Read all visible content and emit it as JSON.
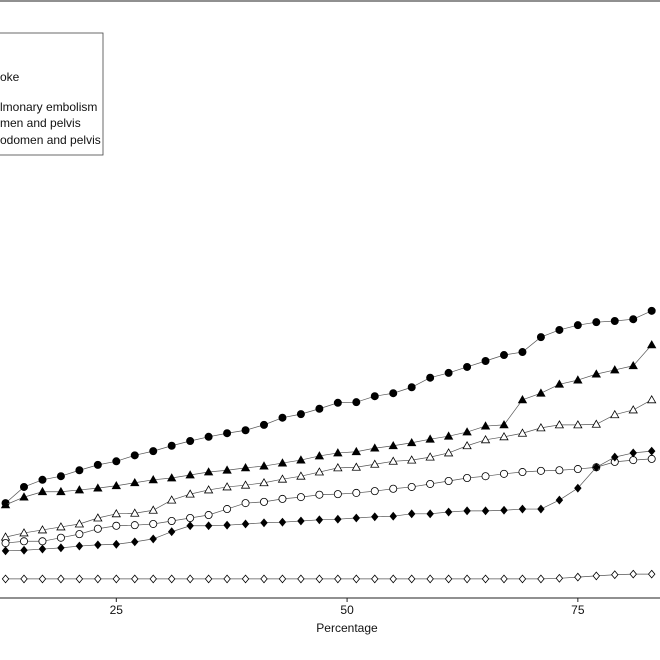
{
  "chart_data": {
    "type": "line",
    "x_label": "Percentage",
    "xlim": [
      12.4,
      83.9
    ],
    "xticks": [
      25,
      50,
      75
    ],
    "ylim": [
      0,
      100
    ],
    "x": [
      13,
      15,
      17,
      19,
      21,
      23,
      25,
      27,
      29,
      31,
      33,
      35,
      37,
      39,
      41,
      43,
      45,
      47,
      49,
      51,
      53,
      55,
      57,
      59,
      61,
      63,
      65,
      67,
      69,
      71,
      73,
      75,
      77,
      79,
      81,
      83
    ],
    "series": [
      {
        "name": null,
        "marker": "circle",
        "filled": true,
        "color": "#000000",
        "values": [
          15.9,
          18.6,
          19.8,
          20.4,
          21.4,
          22.3,
          22.9,
          23.9,
          24.6,
          25.5,
          26.3,
          27.0,
          27.6,
          28.1,
          29.0,
          30.2,
          30.8,
          31.7,
          32.7,
          32.8,
          33.8,
          34.3,
          35.3,
          36.9,
          37.7,
          38.7,
          39.7,
          40.7,
          41.2,
          43.7,
          44.9,
          45.7,
          46.2,
          46.4,
          46.7,
          48.1
        ]
      },
      {
        "name": "oke",
        "marker": "triangle",
        "filled": true,
        "color": "#000000",
        "values": [
          15.6,
          16.9,
          17.8,
          17.8,
          18.1,
          18.4,
          18.8,
          19.3,
          19.8,
          20.1,
          20.6,
          21.1,
          21.4,
          21.8,
          22.1,
          22.6,
          23.1,
          23.8,
          24.3,
          24.5,
          25.1,
          25.5,
          26.0,
          26.6,
          27.1,
          27.8,
          28.8,
          29.0,
          33.2,
          34.3,
          35.8,
          36.5,
          37.5,
          38.2,
          38.9,
          42.4
        ]
      },
      {
        "name": null,
        "marker": "triangle",
        "filled": false,
        "color": "#000000",
        "values": [
          10.2,
          10.9,
          11.4,
          11.9,
          12.4,
          13.4,
          14.1,
          14.2,
          14.7,
          16.4,
          17.4,
          18.1,
          18.6,
          18.9,
          19.3,
          19.9,
          20.4,
          21.1,
          21.8,
          21.9,
          22.4,
          22.9,
          23.1,
          23.6,
          24.3,
          25.5,
          26.5,
          27.0,
          27.6,
          28.5,
          29.0,
          29.0,
          29.1,
          30.7,
          31.5,
          33.2
        ]
      },
      {
        "name": "lmonary embolism",
        "marker": "circle",
        "filled": false,
        "color": "#000000",
        "values": [
          9.2,
          9.5,
          9.5,
          10.1,
          10.7,
          11.6,
          12.1,
          12.2,
          12.4,
          12.9,
          13.4,
          13.9,
          14.9,
          15.9,
          16.1,
          16.6,
          16.9,
          17.3,
          17.4,
          17.6,
          17.9,
          18.3,
          18.6,
          19.1,
          19.6,
          20.1,
          20.4,
          20.8,
          21.1,
          21.3,
          21.4,
          21.6,
          21.9,
          22.8,
          23.1,
          23.3
        ]
      },
      {
        "name": "men and pelvis",
        "marker": "diamond",
        "filled": true,
        "color": "#000000",
        "values": [
          7.9,
          8.0,
          8.2,
          8.4,
          8.7,
          8.9,
          9.0,
          9.4,
          9.9,
          11.1,
          12.1,
          12.1,
          12.2,
          12.4,
          12.6,
          12.7,
          12.9,
          13.1,
          13.2,
          13.4,
          13.6,
          13.7,
          14.1,
          14.1,
          14.4,
          14.6,
          14.6,
          14.7,
          14.9,
          14.9,
          16.4,
          18.4,
          21.9,
          23.6,
          24.3,
          24.6
        ]
      },
      {
        "name": "odomen and pelvis",
        "marker": "diamond",
        "filled": false,
        "color": "#000000",
        "values": [
          3.2,
          3.2,
          3.2,
          3.2,
          3.2,
          3.2,
          3.2,
          3.2,
          3.2,
          3.2,
          3.2,
          3.2,
          3.2,
          3.2,
          3.2,
          3.2,
          3.2,
          3.2,
          3.2,
          3.2,
          3.2,
          3.2,
          3.2,
          3.2,
          3.2,
          3.2,
          3.2,
          3.2,
          3.2,
          3.2,
          3.3,
          3.5,
          3.7,
          3.9,
          4.0,
          4.0
        ]
      }
    ]
  }
}
